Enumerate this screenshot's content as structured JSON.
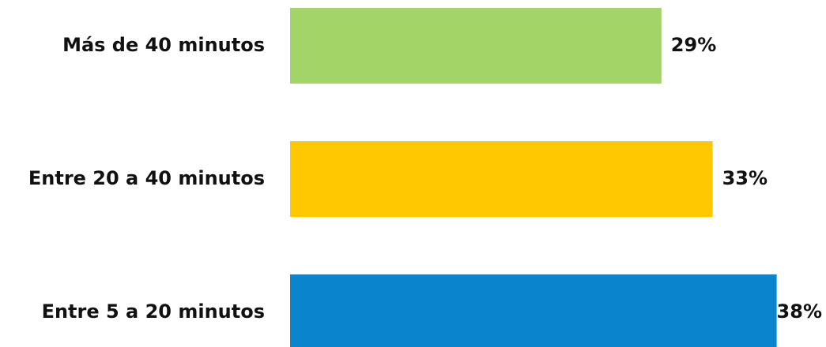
{
  "chart_data": {
    "type": "bar",
    "orientation": "horizontal",
    "categories": [
      "Más de 40 minutos",
      "Entre 20 a 40 minutos",
      "Entre 5 a 20 minutos"
    ],
    "values": [
      29,
      33,
      38
    ],
    "value_labels": [
      "29%",
      "33%",
      "38%"
    ],
    "colors": [
      "#a3d468",
      "#ffc800",
      "#0a84cc"
    ],
    "unit": "%",
    "title": "",
    "xlabel": "",
    "ylabel": "",
    "grid": false,
    "legend": false
  }
}
